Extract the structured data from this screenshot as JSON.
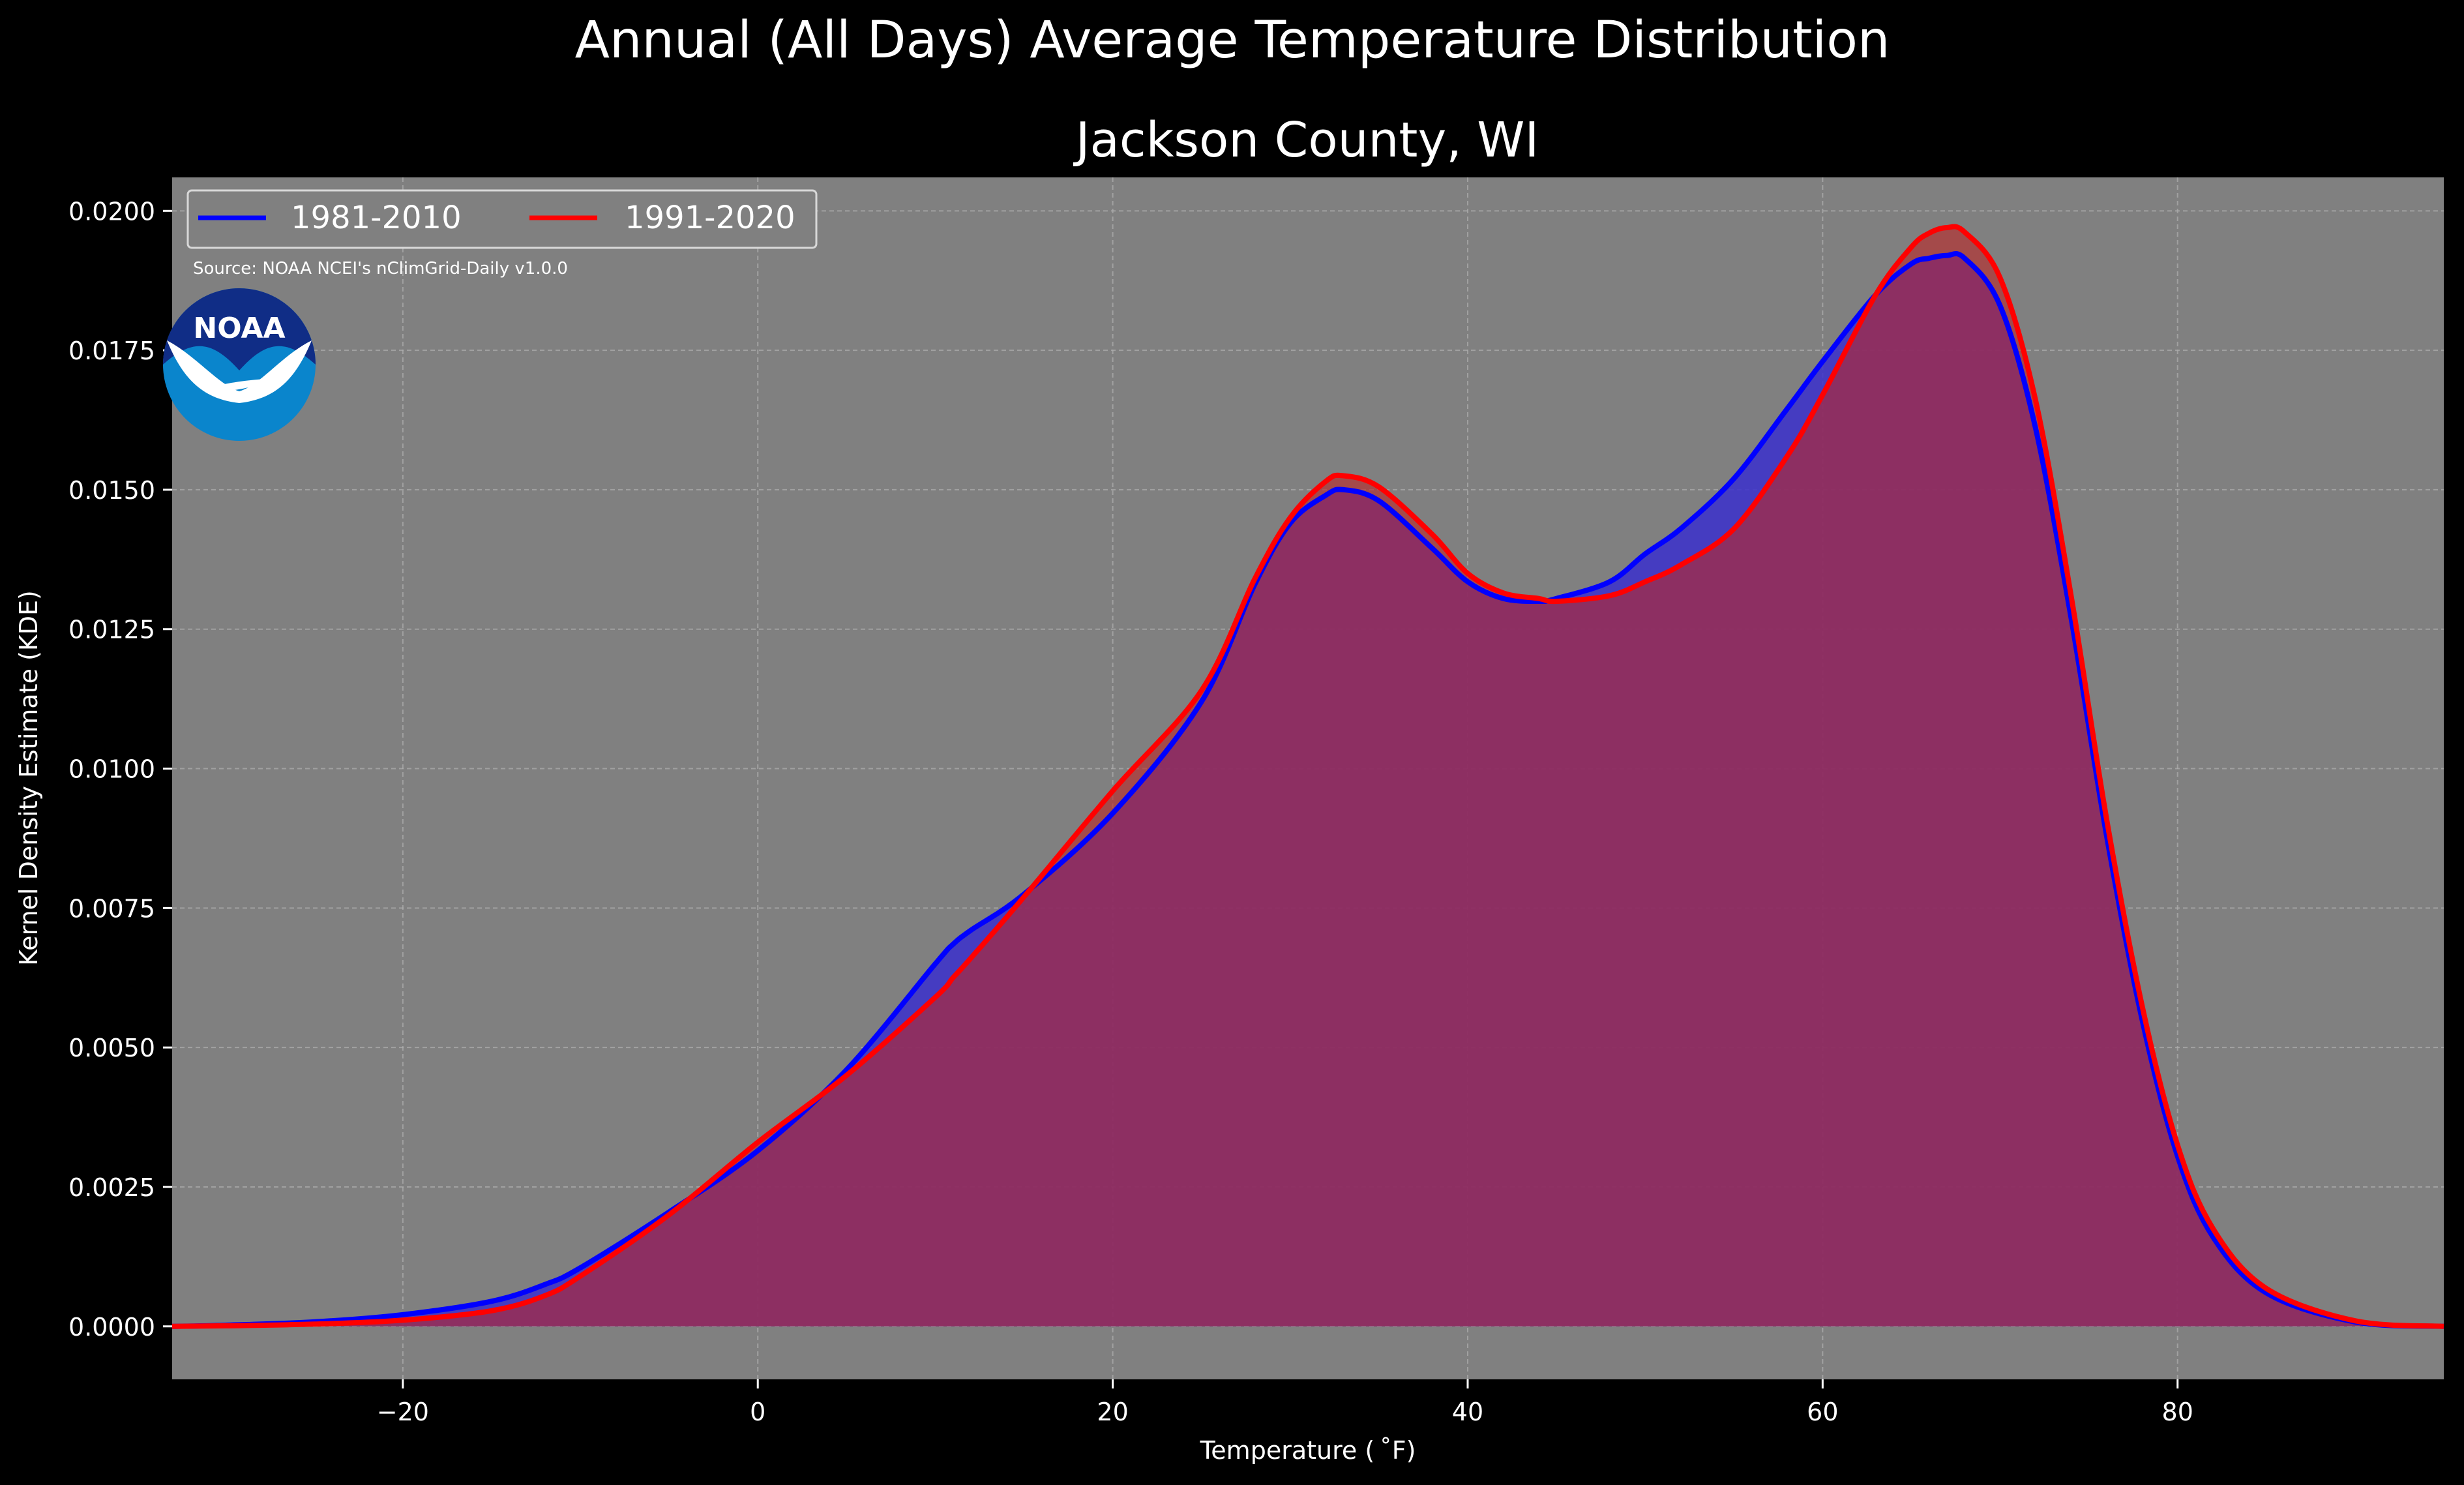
{
  "chart_data": {
    "type": "area",
    "suptitle": "Annual (All Days) Average Temperature Distribution",
    "title": "Jackson County, WI",
    "xlabel": "Temperature ($^\\circ$F)",
    "xlabel_display": "Temperature ( ˚F)",
    "ylabel": "Kernel Density Estimate (KDE)",
    "xlim": [
      -33,
      95
    ],
    "ylim": [
      -0.00095,
      0.0206
    ],
    "xticks": [
      -20,
      0,
      20,
      40,
      60,
      80
    ],
    "xtick_labels": [
      "−20",
      "0",
      "20",
      "40",
      "60",
      "80"
    ],
    "yticks": [
      0,
      0.0025,
      0.005,
      0.0075,
      0.01,
      0.0125,
      0.015,
      0.0175,
      0.02
    ],
    "ytick_labels": [
      "0.0000",
      "0.0025",
      "0.0050",
      "0.0075",
      "0.0100",
      "0.0125",
      "0.0150",
      "0.0175",
      "0.0200"
    ],
    "grid": true,
    "legend_position": "top-left",
    "annotation": "Source: NOAA NCEI's nClimGrid-Daily v1.0.0",
    "logo_text": "NOAA",
    "x": [
      -33,
      -30,
      -25,
      -20,
      -15,
      -12,
      -10,
      -5,
      0,
      5,
      10,
      11,
      12,
      15,
      20,
      25,
      28,
      30,
      32,
      33,
      35,
      38,
      40,
      42,
      44,
      45,
      48,
      50,
      52,
      55,
      58,
      60,
      63,
      65,
      66,
      67,
      68,
      70,
      72,
      74,
      76,
      78,
      80,
      82,
      85,
      90,
      95
    ],
    "series": [
      {
        "name": "1981-2010",
        "color": "#0000ff",
        "fill": "#3b30cc",
        "values": [
          0.0,
          2e-05,
          8e-05,
          0.00021,
          0.00045,
          0.00075,
          0.00105,
          0.00205,
          0.00315,
          0.0046,
          0.0065,
          0.00685,
          0.0071,
          0.00775,
          0.0092,
          0.0112,
          0.0133,
          0.0144,
          0.0149,
          0.015,
          0.0148,
          0.01395,
          0.01335,
          0.01305,
          0.013,
          0.01305,
          0.01335,
          0.01385,
          0.0143,
          0.0152,
          0.01645,
          0.0173,
          0.0185,
          0.01905,
          0.01915,
          0.0192,
          0.01915,
          0.0183,
          0.0161,
          0.0127,
          0.0088,
          0.0055,
          0.00305,
          0.0016,
          0.0006,
          8e-05,
          0.0
        ]
      },
      {
        "name": "1991-2020",
        "color": "#ff0000",
        "fill": "#b92828",
        "values": [
          0.0,
          1e-05,
          4e-05,
          0.00011,
          0.00028,
          0.00055,
          0.0009,
          0.002,
          0.0033,
          0.0045,
          0.0059,
          0.00625,
          0.0066,
          0.0077,
          0.0096,
          0.0114,
          0.0134,
          0.0145,
          0.01515,
          0.01525,
          0.01505,
          0.0142,
          0.0135,
          0.01315,
          0.01305,
          0.013,
          0.0131,
          0.01335,
          0.01365,
          0.0143,
          0.0156,
          0.0167,
          0.0185,
          0.01935,
          0.0196,
          0.0197,
          0.01962,
          0.0188,
          0.0166,
          0.0131,
          0.0091,
          0.00575,
          0.00325,
          0.00175,
          0.00068,
          0.0001,
          0.0
        ]
      }
    ]
  }
}
